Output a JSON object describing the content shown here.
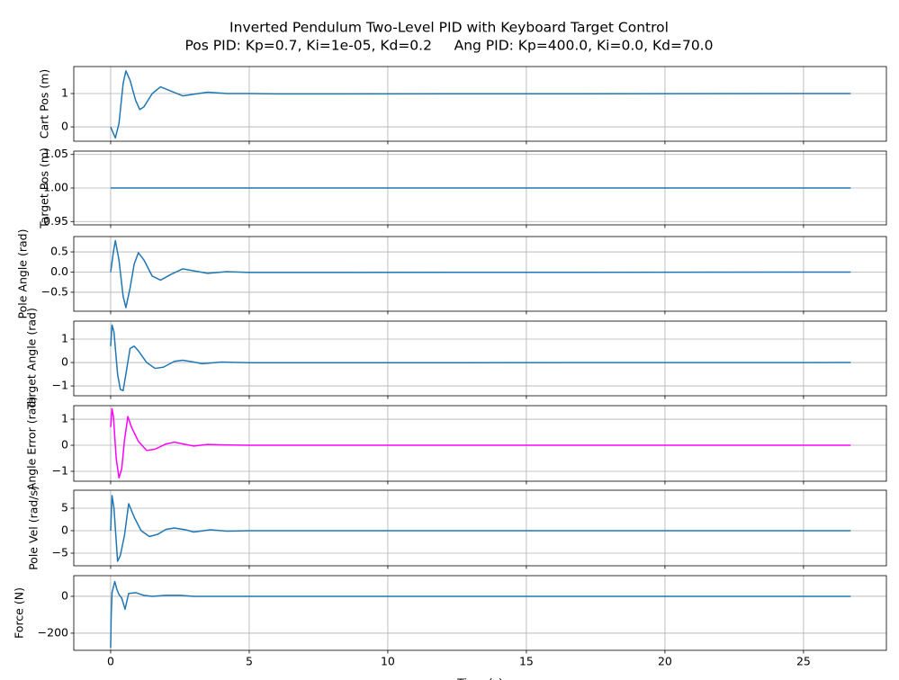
{
  "title": "Inverted Pendulum Two-Level PID with Keyboard Target Control",
  "subtitle": "Pos PID: Kp=0.7, Ki=1e-05, Kd=0.2     Ang PID: Kp=400.0, Ki=0.0, Kd=70.0",
  "chart_data": [
    {
      "type": "line",
      "ylabel": "Cart Pos (m)",
      "xlim": [
        -1.33,
        27.99
      ],
      "xticks": [
        0,
        5,
        10,
        15,
        20,
        25
      ],
      "ylim": [
        -0.43,
        1.81
      ],
      "yticks": [
        0,
        1
      ],
      "grid": true,
      "series": [
        {
          "color": "#1f77b4",
          "x": [
            0,
            0.1,
            0.17,
            0.3,
            0.45,
            0.55,
            0.7,
            0.9,
            1.05,
            1.2,
            1.5,
            1.8,
            2.1,
            2.6,
            3.0,
            3.5,
            4.2,
            5,
            6,
            26.7
          ],
          "values": [
            0,
            -0.2,
            -0.33,
            0.1,
            1.3,
            1.68,
            1.4,
            0.8,
            0.52,
            0.6,
            1.0,
            1.2,
            1.1,
            0.93,
            0.98,
            1.04,
            1.0,
            1.0,
            0.99,
            1.0
          ]
        }
      ]
    },
    {
      "type": "line",
      "ylabel": "Target Pos (m)",
      "xlim": [
        -1.33,
        27.99
      ],
      "xticks": [
        0,
        5,
        10,
        15,
        20,
        25
      ],
      "ylim": [
        0.945,
        1.055
      ],
      "yticks": [
        {
          "value": 0.95,
          "label": "0.95"
        },
        {
          "value": 1.0,
          "label": "1.00"
        },
        {
          "value": 1.05,
          "label": "1.05"
        }
      ],
      "grid": true,
      "series": [
        {
          "color": "#1f77b4",
          "x": [
            0,
            26.7
          ],
          "values": [
            1,
            1
          ]
        }
      ]
    },
    {
      "type": "line",
      "ylabel": "Pole Angle (rad)",
      "xlim": [
        -1.33,
        27.99
      ],
      "xticks": [
        0,
        5,
        10,
        15,
        20,
        25
      ],
      "ylim": [
        -0.97,
        0.88
      ],
      "yticks": [
        {
          "value": -0.5,
          "label": "−0.5"
        },
        {
          "value": 0,
          "label": "0.0"
        },
        0.5
      ],
      "grid": true,
      "series": [
        {
          "color": "#1f77b4",
          "x": [
            0,
            0.1,
            0.17,
            0.3,
            0.45,
            0.55,
            0.7,
            0.85,
            1.0,
            1.2,
            1.5,
            1.8,
            2.2,
            2.6,
            3.0,
            3.5,
            4.2,
            5,
            26.7
          ],
          "values": [
            0,
            0.5,
            0.78,
            0.3,
            -0.6,
            -0.88,
            -0.4,
            0.2,
            0.48,
            0.3,
            -0.1,
            -0.2,
            -0.05,
            0.08,
            0.03,
            -0.03,
            0.01,
            -0.01,
            0
          ]
        }
      ]
    },
    {
      "type": "line",
      "ylabel": "Target Angle (rad)",
      "xlim": [
        -1.33,
        27.99
      ],
      "xticks": [
        0,
        5,
        10,
        15,
        20,
        25
      ],
      "ylim": [
        -1.42,
        1.77
      ],
      "yticks": [
        {
          "value": -1,
          "label": "−1"
        },
        0,
        1
      ],
      "grid": true,
      "series": [
        {
          "color": "#1f77b4",
          "x": [
            0,
            0.05,
            0.12,
            0.25,
            0.35,
            0.45,
            0.55,
            0.7,
            0.85,
            1.0,
            1.3,
            1.6,
            1.9,
            2.3,
            2.6,
            3.0,
            3.3,
            4.0,
            5,
            26.7
          ],
          "values": [
            0.7,
            1.6,
            1.3,
            -0.5,
            -1.15,
            -1.2,
            -0.5,
            0.6,
            0.7,
            0.5,
            0,
            -0.25,
            -0.2,
            0.05,
            0.1,
            0.02,
            -0.05,
            0.02,
            -0.01,
            0
          ]
        }
      ]
    },
    {
      "type": "line",
      "ylabel": "Angle Error (rad)",
      "xlim": [
        -1.33,
        27.99
      ],
      "xticks": [
        0,
        5,
        10,
        15,
        20,
        25
      ],
      "ylim": [
        -1.38,
        1.52
      ],
      "yticks": [
        {
          "value": -1,
          "label": "−1"
        },
        0,
        1
      ],
      "grid": true,
      "series": [
        {
          "color": "#ff00ff",
          "x": [
            0,
            0.05,
            0.1,
            0.2,
            0.3,
            0.4,
            0.5,
            0.62,
            0.75,
            1.0,
            1.3,
            1.6,
            2.0,
            2.3,
            2.7,
            3.0,
            3.5,
            4.2,
            5,
            26.7
          ],
          "values": [
            0.7,
            1.4,
            1.1,
            -0.5,
            -1.25,
            -0.9,
            0.2,
            1.1,
            0.7,
            0.15,
            -0.2,
            -0.15,
            0.05,
            0.12,
            0.03,
            -0.03,
            0.03,
            0.01,
            0,
            0
          ]
        }
      ]
    },
    {
      "type": "line",
      "ylabel": "Pole Vel (rad/s)",
      "xlim": [
        -1.33,
        27.99
      ],
      "xticks": [
        0,
        5,
        10,
        15,
        20,
        25
      ],
      "ylim": [
        -7.8,
        9
      ],
      "yticks": [
        {
          "value": -5,
          "label": "−5"
        },
        0,
        5
      ],
      "grid": true,
      "series": [
        {
          "color": "#1f77b4",
          "x": [
            0,
            0.05,
            0.12,
            0.25,
            0.35,
            0.5,
            0.65,
            0.85,
            1.1,
            1.4,
            1.7,
            2.0,
            2.3,
            2.7,
            3.0,
            3.6,
            4.2,
            5,
            26.7
          ],
          "values": [
            0,
            7.8,
            5,
            -6.8,
            -5.5,
            -1,
            6,
            3,
            0,
            -1.3,
            -0.8,
            0.3,
            0.6,
            0.2,
            -0.3,
            0.2,
            -0.1,
            0,
            0
          ]
        }
      ]
    },
    {
      "type": "line",
      "ylabel": "Force (N)",
      "xlabel": "Time (s)",
      "xlim": [
        -1.33,
        27.99
      ],
      "xticks": [
        0,
        5,
        10,
        15,
        20,
        25
      ],
      "ylim": [
        -293,
        112
      ],
      "yticks": [
        {
          "value": -200,
          "label": "−200"
        },
        0
      ],
      "grid": true,
      "series": [
        {
          "color": "#1f77b4",
          "x": [
            0,
            0.02,
            0.05,
            0.15,
            0.22,
            0.3,
            0.4,
            0.52,
            0.58,
            0.65,
            0.9,
            1.2,
            1.5,
            2.0,
            2.5,
            3.0,
            26.7
          ],
          "values": [
            -280,
            -100,
            20,
            80,
            40,
            10,
            -10,
            -70,
            -30,
            15,
            20,
            5,
            0,
            5,
            5,
            0,
            0
          ]
        }
      ]
    }
  ]
}
